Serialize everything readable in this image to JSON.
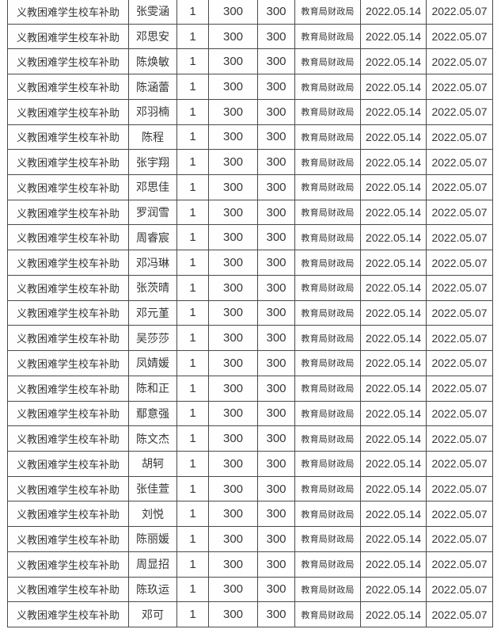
{
  "colors": {
    "background": "#fefefe",
    "border": "#4a4a4a",
    "text": "#363636"
  },
  "table": {
    "columns": [
      "subsidy-name",
      "student-name",
      "quantity",
      "standard-amount",
      "paid-amount",
      "agency",
      "approval-date",
      "payment-date"
    ],
    "shared": {
      "subsidy_name": "义教困难学生校车补助",
      "quantity": "1",
      "standard_amount": "300",
      "paid_amount": "300",
      "agency": "教育局财政局",
      "approval_date": "2022.05.14",
      "payment_date": "2022.05.07"
    },
    "rows": [
      [
        "义教困难学生校车补助",
        "张雯涵",
        "1",
        "300",
        "300",
        "教育局财政局",
        "2022.05.14",
        "2022.05.07"
      ],
      [
        "义教困难学生校车补助",
        "邓思安",
        "1",
        "300",
        "300",
        "教育局财政局",
        "2022.05.14",
        "2022.05.07"
      ],
      [
        "义教困难学生校车补助",
        "陈焕敏",
        "1",
        "300",
        "300",
        "教育局财政局",
        "2022.05.14",
        "2022.05.07"
      ],
      [
        "义教困难学生校车补助",
        "陈涵蕾",
        "1",
        "300",
        "300",
        "教育局财政局",
        "2022.05.14",
        "2022.05.07"
      ],
      [
        "义教困难学生校车补助",
        "邓羽楠",
        "1",
        "300",
        "300",
        "教育局财政局",
        "2022.05.14",
        "2022.05.07"
      ],
      [
        "义教困难学生校车补助",
        "陈程",
        "1",
        "300",
        "300",
        "教育局财政局",
        "2022.05.14",
        "2022.05.07"
      ],
      [
        "义教困难学生校车补助",
        "张宇翔",
        "1",
        "300",
        "300",
        "教育局财政局",
        "2022.05.14",
        "2022.05.07"
      ],
      [
        "义教困难学生校车补助",
        "邓思佳",
        "1",
        "300",
        "300",
        "教育局财政局",
        "2022.05.14",
        "2022.05.07"
      ],
      [
        "义教困难学生校车补助",
        "罗润雪",
        "1",
        "300",
        "300",
        "教育局财政局",
        "2022.05.14",
        "2022.05.07"
      ],
      [
        "义教困难学生校车补助",
        "周睿宸",
        "1",
        "300",
        "300",
        "教育局财政局",
        "2022.05.14",
        "2022.05.07"
      ],
      [
        "义教困难学生校车补助",
        "邓冯琳",
        "1",
        "300",
        "300",
        "教育局财政局",
        "2022.05.14",
        "2022.05.07"
      ],
      [
        "义教困难学生校车补助",
        "张茨晴",
        "1",
        "300",
        "300",
        "教育局财政局",
        "2022.05.14",
        "2022.05.07"
      ],
      [
        "义教困难学生校车补助",
        "邓元堇",
        "1",
        "300",
        "300",
        "教育局财政局",
        "2022.05.14",
        "2022.05.07"
      ],
      [
        "义教困难学生校车补助",
        "吴莎莎",
        "1",
        "300",
        "300",
        "教育局财政局",
        "2022.05.14",
        "2022.05.07"
      ],
      [
        "义教困难学生校车补助",
        "凤婧媛",
        "1",
        "300",
        "300",
        "教育局财政局",
        "2022.05.14",
        "2022.05.07"
      ],
      [
        "义教困难学生校车补助",
        "陈和正",
        "1",
        "300",
        "300",
        "教育局财政局",
        "2022.05.14",
        "2022.05.07"
      ],
      [
        "义教困难学生校车补助",
        "鄢意强",
        "1",
        "300",
        "300",
        "教育局财政局",
        "2022.05.14",
        "2022.05.07"
      ],
      [
        "义教困难学生校车补助",
        "陈文杰",
        "1",
        "300",
        "300",
        "教育局财政局",
        "2022.05.14",
        "2022.05.07"
      ],
      [
        "义教困难学生校车补助",
        "胡轲",
        "1",
        "300",
        "300",
        "教育局财政局",
        "2022.05.14",
        "2022.05.07"
      ],
      [
        "义教困难学生校车补助",
        "张佳萱",
        "1",
        "300",
        "300",
        "教育局财政局",
        "2022.05.14",
        "2022.05.07"
      ],
      [
        "义教困难学生校车补助",
        "刘悦",
        "1",
        "300",
        "300",
        "教育局财政局",
        "2022.05.14",
        "2022.05.07"
      ],
      [
        "义教困难学生校车补助",
        "陈丽媛",
        "1",
        "300",
        "300",
        "教育局财政局",
        "2022.05.14",
        "2022.05.07"
      ],
      [
        "义教困难学生校车补助",
        "周显招",
        "1",
        "300",
        "300",
        "教育局财政局",
        "2022.05.14",
        "2022.05.07"
      ],
      [
        "义教困难学生校车补助",
        "陈玖运",
        "1",
        "300",
        "300",
        "教育局财政局",
        "2022.05.14",
        "2022.05.07"
      ],
      [
        "义教困难学生校车补助",
        "邓可",
        "1",
        "300",
        "300",
        "教育局财政局",
        "2022.05.14",
        "2022.05.07"
      ]
    ]
  }
}
